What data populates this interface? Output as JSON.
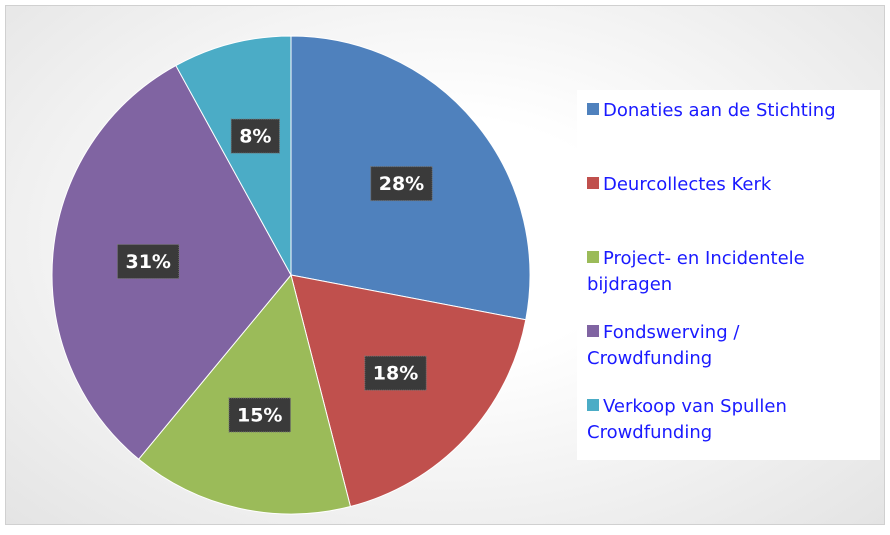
{
  "chart_data": {
    "type": "pie",
    "series": [
      {
        "name": "Donaties aan de Stichting",
        "color": "#4f81bd",
        "value": 28,
        "value_label": "28%"
      },
      {
        "name": "Deurcollectes Kerk",
        "color": "#c0504d",
        "value": 18,
        "value_label": "18%"
      },
      {
        "name": "Project- en Incidentele bijdragen",
        "color": "#9bbb59",
        "value": 15,
        "value_label": "15%"
      },
      {
        "name": "Fondswerving  / Crowdfunding",
        "color": "#8064a2",
        "value": 31,
        "value_label": "31%"
      },
      {
        "name": "Verkoop van Spullen Crowdfunding",
        "color": "#4bacc6",
        "value": 8,
        "value_label": "8%"
      }
    ],
    "legend": "right"
  }
}
